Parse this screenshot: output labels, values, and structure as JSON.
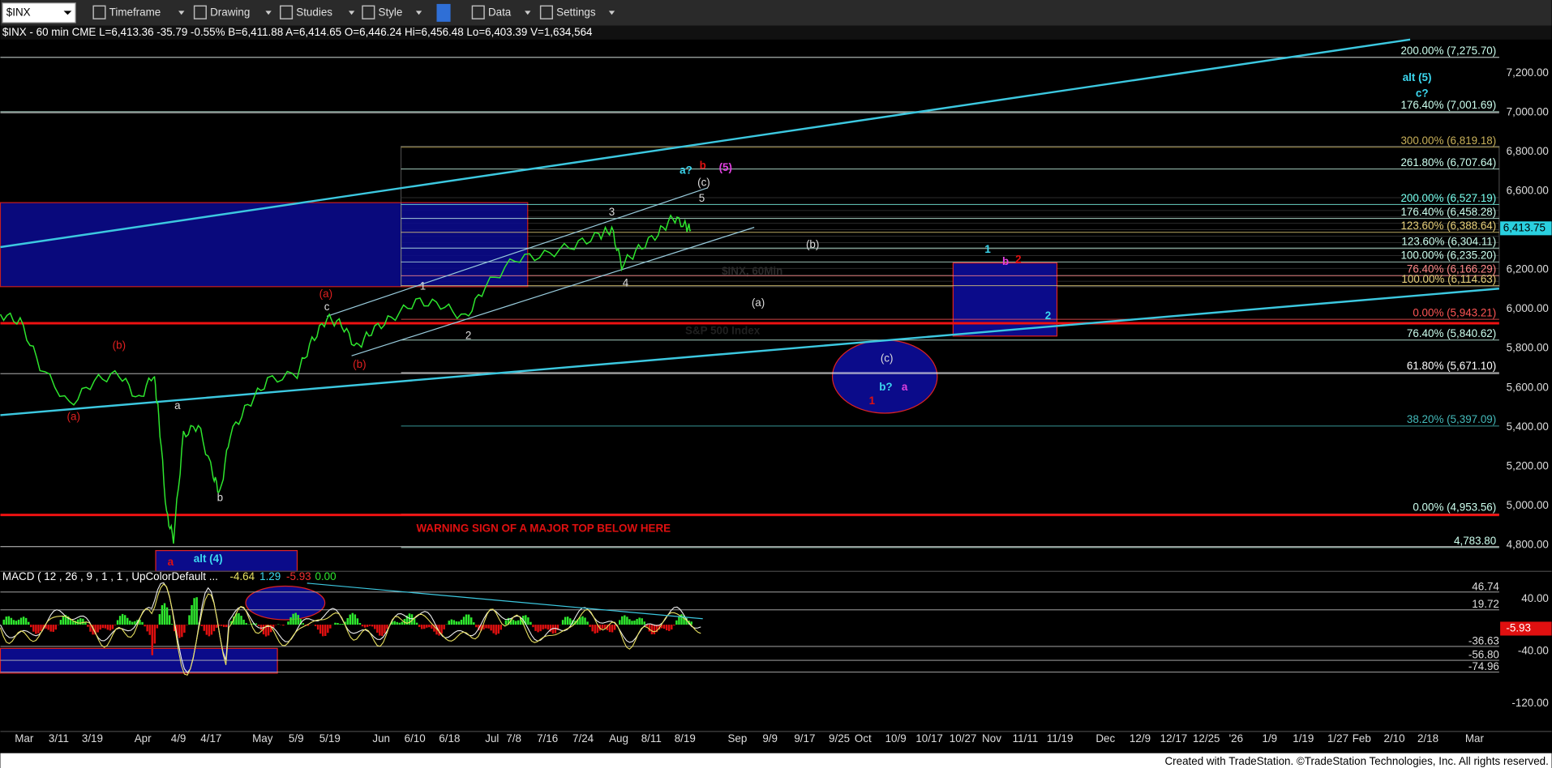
{
  "toolbar": {
    "symbol": "$INX",
    "menus": [
      "Timeframe",
      "Drawing",
      "Studies",
      "Style",
      "Data",
      "Settings"
    ]
  },
  "quote_line": "$INX - 60 min CME  L=6,413.36  -35.79  -0.55%  B=6,411.88  A=6,414.65  O=6,446.24  Hi=6,456.48  Lo=6,403.39  V=1,634,564",
  "price_axis": [
    "7,200.00",
    "7,000.00",
    "6,800.00",
    "6,600.00",
    "6,400.00",
    "6,200.00",
    "6,000.00",
    "5,800.00",
    "5,600.00",
    "5,400.00",
    "5,200.00",
    "5,000.00",
    "4,800.00"
  ],
  "last_price": "6,413.75",
  "fib_levels": [
    "200.00% (7,275.70)",
    "176.40% (7,001.69)",
    "300.00% (6,819.18)",
    "261.80% (6,707.64)",
    "200.00% (6,527.19)",
    "176.40% (6,458.28)",
    "123.60% (6,388.64)",
    "123.60% (6,304.11)",
    "100.00% (6,235.20)",
    "76.40% (6,166.29)",
    "100.00% (6,114.63)",
    "0.00% (5,943.21)",
    "76.40% (5,840.62)",
    "61.80% (5,671.10)",
    "38.20% (5,397.09)",
    "0.00% (4,953.56)",
    "4,783.80"
  ],
  "wave_labels": [
    "alt (5)",
    "c?",
    "a?",
    "b",
    "(5)",
    "(c)",
    "5",
    "3",
    "(b)",
    "1",
    "b",
    "2",
    "4",
    "1",
    "(a)",
    "(a)",
    "c",
    "2",
    "2",
    "(c)",
    "b?",
    "a",
    "1",
    "(b)",
    "(b)",
    "a",
    "(a)",
    "b",
    "a",
    "alt (4)"
  ],
  "annotation": "WARNING SIGN OF A MAJOR TOP BELOW HERE",
  "watermark": [
    "$INX, 60Min",
    "S&P 500 Index"
  ],
  "macd": {
    "label": "MACD ( 12 , 26 , 9 , 1 , 1 , UpColorDefault ...",
    "readings": [
      "-4.64",
      "1.29",
      "-5.93",
      "0.00"
    ],
    "axis": [
      "46.74",
      "40.00",
      "19.72",
      "-36.63",
      "-40.00",
      "-56.80",
      "-74.96",
      "-120.00"
    ],
    "last": "-5.93"
  },
  "time_axis": [
    "Mar",
    "3/11",
    "3/19",
    "Apr",
    "4/9",
    "4/17",
    "May",
    "5/9",
    "5/19",
    "Jun",
    "6/10",
    "6/18",
    "Jul",
    "7/8",
    "7/16",
    "7/24",
    "Aug",
    "8/11",
    "8/19",
    "Sep",
    "9/9",
    "9/17",
    "9/25",
    "Oct",
    "10/9",
    "10/17",
    "10/27",
    "Nov",
    "11/11",
    "11/19",
    "Dec",
    "12/9",
    "12/17",
    "12/25",
    "'26",
    "1/9",
    "1/19",
    "1/27",
    "Feb",
    "2/10",
    "2/18",
    "Mar"
  ],
  "footer": "Created with TradeStation. ©TradeStation Technologies, Inc. All rights reserved."
}
